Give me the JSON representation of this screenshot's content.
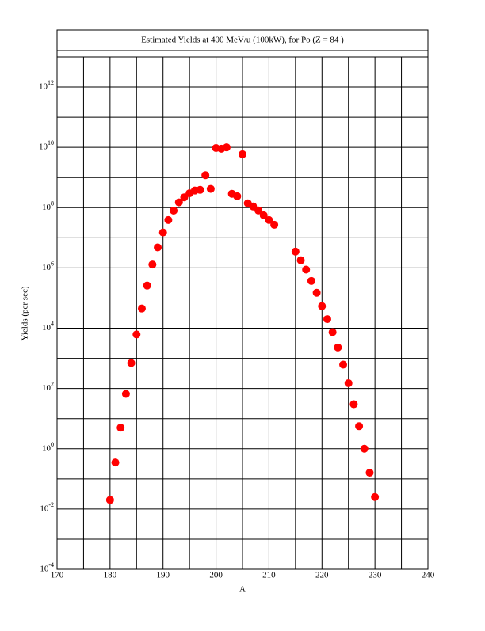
{
  "chart_data": {
    "type": "scatter",
    "title": "Estimated Yields at 400 MeV/u (100kW), for Po (Z = 84 )",
    "xlabel": "A",
    "ylabel": "Yields (per sec)",
    "color": "#ff0000",
    "log_y": true,
    "grid": true,
    "x": [
      180,
      181,
      182,
      183,
      184,
      185,
      186,
      187,
      188,
      189,
      190,
      191,
      192,
      193,
      194,
      195,
      196,
      197,
      198,
      199,
      200,
      201,
      202,
      203,
      204,
      205,
      206,
      207,
      208,
      209,
      210,
      211,
      215,
      216,
      217,
      218,
      219,
      220,
      221,
      222,
      223,
      224,
      225,
      226,
      227,
      228,
      229,
      230
    ],
    "values": [
      0.02,
      0.35,
      5,
      66,
      700,
      6200,
      45000,
      260000,
      1300000,
      4800000,
      15000000,
      39000000,
      80000000,
      150000000,
      220000000,
      300000000,
      370000000,
      390000000,
      1200000000,
      420000000,
      9500000000,
      9000000000,
      10000000000,
      290000000,
      240000000,
      5900000000,
      140000000,
      110000000,
      81000000,
      56000000,
      39000000,
      27000000,
      3500000,
      1800000,
      880000,
      370000,
      150000,
      54000,
      20000,
      7400,
      2300,
      620,
      150,
      30,
      5.6,
      1,
      0.16,
      0.025
    ],
    "xlim": [
      170,
      240
    ],
    "xticks": [
      170,
      180,
      190,
      200,
      210,
      220,
      230,
      240
    ],
    "x_gridlines": [
      175,
      185,
      195,
      205,
      215,
      225,
      235
    ],
    "ylim": [
      0.0001,
      10000000000000
    ],
    "yticks": [
      {
        "value": 0.0001,
        "label": "10^-4"
      },
      {
        "value": 0.01,
        "label": "10^-2"
      },
      {
        "value": 1,
        "label": "10^0"
      },
      {
        "value": 100,
        "label": "10^2"
      },
      {
        "value": 10000,
        "label": "10^4"
      },
      {
        "value": 1000000,
        "label": "10^6"
      },
      {
        "value": 100000000,
        "label": "10^8"
      },
      {
        "value": 10000000000,
        "label": "10^10"
      },
      {
        "value": 1000000000000,
        "label": "10^12"
      }
    ],
    "y_gridlines": [
      0.001,
      0.1,
      10,
      1000,
      100000,
      10000000,
      1000000000,
      100000000000
    ]
  }
}
